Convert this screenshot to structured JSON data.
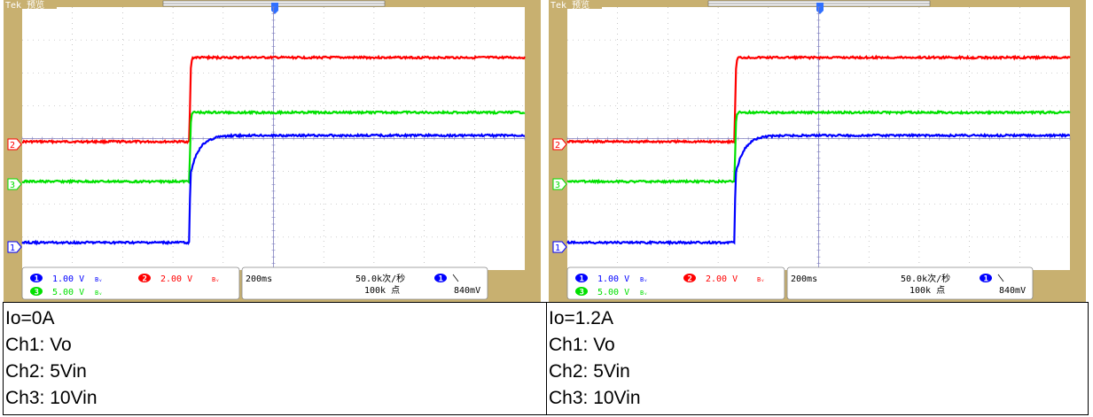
{
  "scopes": [
    {
      "id": "left",
      "brand": "Tek",
      "mode": "预览",
      "ch1_scale": "1.00 V",
      "ch2_scale": "2.00 V",
      "ch3_scale": "5.00 V",
      "ch1_num": "1",
      "ch2_num": "2",
      "ch3_num": "3",
      "timebase": "200ms",
      "sample_rate": "50.0k次/秒",
      "points": "100k 点",
      "trigger_ch": "1",
      "trigger_level": "840mV",
      "marker_ch1": "1",
      "marker_ch2": "2",
      "marker_ch3": "3",
      "caption": [
        "Io=0A",
        "Ch1: Vo",
        "Ch2: 5Vin",
        "Ch3: 10Vin"
      ]
    },
    {
      "id": "right",
      "brand": "Tek",
      "mode": "预览",
      "ch1_scale": "1.00 V",
      "ch2_scale": "2.00 V",
      "ch3_scale": "5.00 V",
      "ch1_num": "1",
      "ch2_num": "2",
      "ch3_num": "3",
      "timebase": "200ms",
      "sample_rate": "50.0k次/秒",
      "points": "100k 点",
      "trigger_ch": "1",
      "trigger_level": "840mV",
      "marker_ch1": "1",
      "marker_ch2": "2",
      "marker_ch3": "3",
      "caption": [
        "Io=1.2A",
        "Ch1: Vo",
        "Ch2: 5Vin",
        "Ch3: 10Vin"
      ]
    }
  ],
  "colors": {
    "frame": "#c8b070",
    "screen": "#ffffff",
    "ch1": "#0000ff",
    "ch2": "#ff0000",
    "ch3": "#00e000",
    "grid": "#a0a0a0",
    "statusbar": "#ffffff"
  }
}
